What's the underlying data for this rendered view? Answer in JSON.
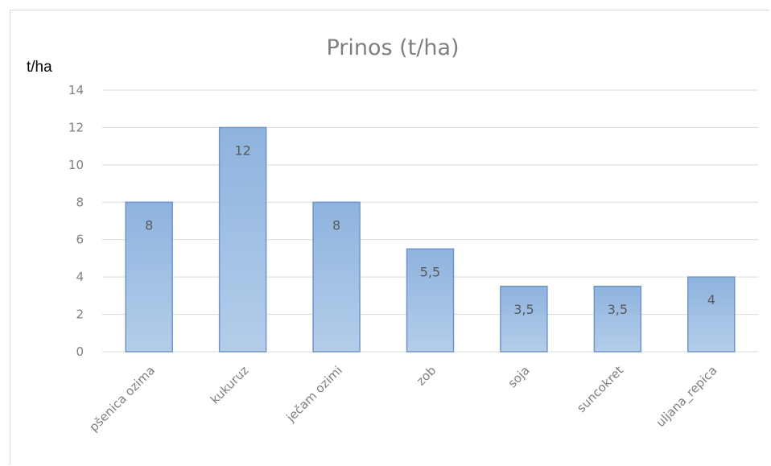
{
  "chart_data": {
    "type": "bar",
    "title": "Prinos (t/ha)",
    "ylabel": "t/ha",
    "xlabel": "",
    "categories": [
      "pšenica ozima",
      "kukuruz",
      "ječam ozimi",
      "zob",
      "soja",
      "suncokret",
      "uljana_repica"
    ],
    "values": [
      8,
      12,
      8,
      5.5,
      3.5,
      3.5,
      4
    ],
    "value_labels": [
      "8",
      "12",
      "8",
      "5,5",
      "3,5",
      "3,5",
      "4"
    ],
    "ylim": [
      0,
      14
    ],
    "yticks": [
      "0",
      "2",
      "4",
      "6",
      "8",
      "10",
      "12",
      "14"
    ],
    "grid": true,
    "legend": "none",
    "bar_color_top": "#8eb3de",
    "bar_color_bottom": "#b4cdea",
    "bar_border": "#6f96c6"
  }
}
